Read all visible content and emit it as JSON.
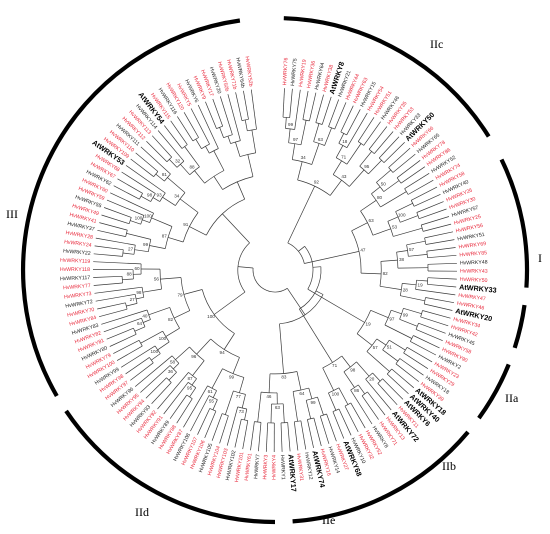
{
  "figure": {
    "groups": [
      "I",
      "IIa",
      "IIb",
      "IIc",
      "IId",
      "IIe",
      "III"
    ],
    "highlight_genes": [
      "AtWRKY8",
      "AtWRKY50",
      "AtWRKY33",
      "AtWRKY20",
      "AtWRKY18",
      "AtWRKY40",
      "AtWRKY6",
      "AtWRKY72",
      "AtWRKY68",
      "AtWRKY74",
      "AtWRKY17",
      "AtWRKY53",
      "AtWRKY54"
    ],
    "leaf_labels": [
      "HvWRKY76",
      "HvWRKY75",
      "HvWRKY19",
      "HvWRKY36",
      "HvWRKY64",
      "HvWRKY38",
      "AtWRKY8",
      "HvWRKY21",
      "HvWRKY44",
      "HvWRKY63",
      "HvWRKY15",
      "HvWRKY54",
      "HvWRKY51",
      "HvWRKY46",
      "HvWRKY35",
      "HvWRKY53",
      "HvWRKY33",
      "AtWRKY50",
      "HvWRKY66",
      "HvWRKY65",
      "HvWRKY78",
      "HvWRKY86",
      "HvWRKY52",
      "HvWRKY74",
      "HvWRKY58",
      "HvWRKY40",
      "HvWRKY26",
      "HvWRKY30",
      "HvWRKY57",
      "HvWRKY25",
      "HvWRKY56",
      "HvWRKY51",
      "HvWRKY69",
      "HvWRKY85",
      "HvWRKY48",
      "HvWRKY43",
      "HvWRKY50",
      "AtWRKY33",
      "HvWRKY47",
      "HvWRKY46",
      "AtWRKY20",
      "HvWRKY34",
      "HvWRKY42",
      "HvWRKY45",
      "HvWRKY58",
      "HvWRKY90",
      "HvWRKY2",
      "HvWRKY23",
      "HvWRKY29",
      "HvWRKY18",
      "HvWRKY39",
      "AtWRKY18",
      "AtWRKY40",
      "AtWRKY6",
      "HvWRKY11",
      "AtWRKY72",
      "HvWRKY13",
      "HvWRKY71",
      "HvWRKY8",
      "HvWRKY52",
      "HvWRKY32",
      "HvWRKY10",
      "AtWRKY68",
      "HvWRKY27",
      "HvWRKY14",
      "HvWRKY16",
      "AtWRKY74",
      "HvWRKY12",
      "HvWRKY31",
      "AtWRKY17",
      "HvWRKY1",
      "HvWRKY4",
      "HvWRKY3",
      "HvWRKY7",
      "HvWRKY61",
      "HvWRKY101",
      "HvWRKY102",
      "HvWRKY103",
      "HvWRKY104",
      "HvWRKY105",
      "HvWRKY106",
      "HvWRKY107",
      "HvWRKY108",
      "HvWRKY87",
      "HvWRKY88",
      "HvWRKY89",
      "HvWRKY91",
      "HvWRKY92",
      "HvWRKY93",
      "HvWRKY94",
      "HvWRKY95",
      "HvWRKY96",
      "HvWRKY97",
      "HvWRKY98",
      "HvWRKY99",
      "HvWRKY100",
      "HvWRKY79",
      "HvWRKY80",
      "HvWRKY81",
      "HvWRKY82",
      "HvWRKY83",
      "HvWRKY84",
      "HvWRKY70",
      "HvWRKY72",
      "HvWRKY73",
      "HvWRKY77",
      "HvWRKY117",
      "HvWRKY118",
      "HvWRKY119",
      "HvWRKY22",
      "HvWRKY24",
      "HvWRKY28",
      "HvWRKY37",
      "HvWRKY41",
      "HvWRKY49",
      "HvWRKY55",
      "HvWRKY59",
      "HvWRKY60",
      "HvWRKY62",
      "HvWRKY67",
      "HvWRKY68",
      "AtWRKY53",
      "HvWRKY109",
      "HvWRKY110",
      "HvWRKY111",
      "HvWRKY112",
      "HvWRKY113",
      "HvWRKY114",
      "AtWRKY54",
      "HvWRKY115",
      "HvWRKY116",
      "HvWRKY120",
      "HvWRKY5",
      "HvWRKY6",
      "HvWRKY9",
      "HvWRKY17",
      "HvWRKY20",
      "HvWRKY50b",
      "HvWRKY71b",
      "HvWRKY64b",
      "HvWRKY52b"
    ],
    "bootstrap": [
      "99",
      "97",
      "63",
      "34",
      "18",
      "71",
      "95",
      "43",
      "92",
      "50",
      "80",
      "100",
      "53",
      "63",
      "57",
      "38",
      "19",
      "28",
      "82",
      "47",
      "99",
      "97",
      "51",
      "57",
      "19",
      "20",
      "86",
      "98",
      "100",
      "71",
      "99",
      "64",
      "63",
      "46",
      "83",
      "73",
      "77",
      "55",
      "61",
      "99",
      "95",
      "87",
      "36",
      "58",
      "96",
      "94",
      "100",
      "100",
      "64",
      "40",
      "82",
      "27",
      "98",
      "88",
      "60",
      "56",
      "79",
      "100",
      "27",
      "99",
      "100",
      "100",
      "87",
      "98",
      "93",
      "81",
      "34",
      "91",
      "32",
      "88"
    ],
    "colors": {
      "hv": "#e8273a",
      "hv_alt": "#222222",
      "at": "#000000",
      "branch": "#3a3a3a",
      "arc": "#000000"
    }
  }
}
